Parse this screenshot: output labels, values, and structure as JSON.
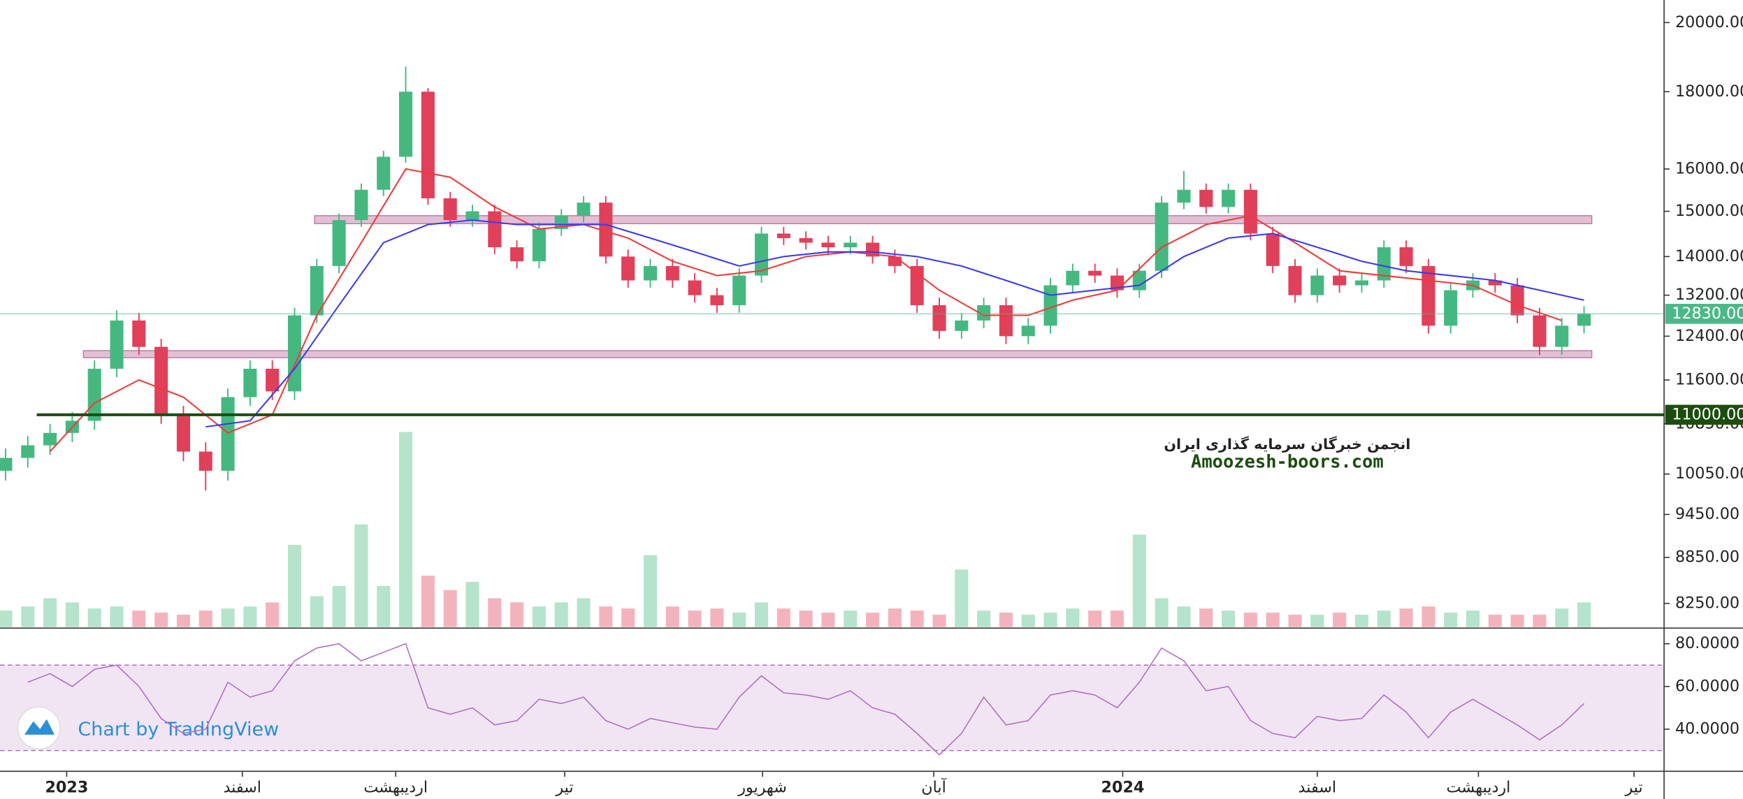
{
  "chart_data": {
    "type": "candlestick",
    "log": true,
    "up_color": "#45b880",
    "down_color": "#e0405a",
    "xlim": [
      -0.25,
      74.6
    ],
    "xticks": [
      {
        "value": 2.75,
        "label": "2023"
      },
      {
        "value": 10.65,
        "label": "اسفند"
      },
      {
        "value": 17.55,
        "label": "اردیبهشت"
      },
      {
        "value": 25.15,
        "label": "تیر"
      },
      {
        "value": 34.05,
        "label": "شهریور"
      },
      {
        "value": 41.75,
        "label": "آبان"
      },
      {
        "value": 50.25,
        "label": "2024"
      },
      {
        "value": 59,
        "label": "اسفند"
      },
      {
        "value": 66.25,
        "label": "اردیبهشت"
      },
      {
        "value": 73.25,
        "label": "تیر"
      }
    ],
    "ylim": [
      7960,
      20700
    ],
    "yticks": [
      {
        "value": 20000,
        "label": "20000.00"
      },
      {
        "value": 18000,
        "label": "18000.00"
      },
      {
        "value": 16000,
        "label": "16000.00"
      },
      {
        "value": 15000,
        "label": "15000.00"
      },
      {
        "value": 14000,
        "label": "14000.00"
      },
      {
        "value": 13200,
        "label": "13200.00"
      },
      {
        "value": 12400,
        "label": "12400.00"
      },
      {
        "value": 11600,
        "label": "11600.00"
      },
      {
        "value": 10850,
        "label": "10850.00"
      },
      {
        "value": 10050,
        "label": "10050.00"
      },
      {
        "value": 9450,
        "label": "9450.00"
      },
      {
        "value": 8850,
        "label": "8850.00"
      },
      {
        "value": 8250,
        "label": "8250.00"
      }
    ],
    "x": [
      0,
      1,
      2,
      3,
      4,
      5,
      6,
      7,
      8,
      9,
      10,
      11,
      12,
      13,
      14,
      15,
      16,
      17,
      18,
      19,
      20,
      21,
      22,
      23,
      24,
      25,
      26,
      27,
      28,
      29,
      30,
      31,
      32,
      33,
      34,
      35,
      36,
      37,
      38,
      39,
      40,
      41,
      42,
      43,
      44,
      45,
      46,
      47,
      48,
      49,
      50,
      51,
      52,
      53,
      54,
      55,
      56,
      57,
      58,
      59,
      60,
      61,
      62,
      63,
      64,
      65,
      66,
      67,
      68,
      69,
      70,
      71
    ],
    "open": [
      10100,
      10300,
      10500,
      10700,
      10900,
      11800,
      12700,
      12200,
      11000,
      10400,
      10100,
      11300,
      11800,
      11400,
      12800,
      13800,
      14800,
      15500,
      16300,
      18000,
      15300,
      14800,
      15000,
      14200,
      13900,
      14600,
      14900,
      15200,
      14000,
      13500,
      13800,
      13500,
      13200,
      13000,
      13600,
      14500,
      14400,
      14300,
      14200,
      14300,
      14000,
      13800,
      13000,
      12500,
      12700,
      13000,
      12400,
      12600,
      13400,
      13700,
      13600,
      13300,
      13700,
      15200,
      15500,
      15100,
      15500,
      14500,
      13800,
      13200,
      13600,
      13400,
      13500,
      14200,
      13800,
      12600,
      13300,
      13500,
      13400,
      12800,
      12200,
      12600
    ],
    "high": [
      10450,
      10650,
      10850,
      11050,
      11950,
      12900,
      12850,
      12350,
      11150,
      10550,
      11450,
      11950,
      11950,
      12950,
      13950,
      14950,
      15650,
      16450,
      18700,
      18100,
      15450,
      15150,
      15150,
      14350,
      14750,
      15050,
      15350,
      15350,
      14150,
      13950,
      13950,
      13650,
      13350,
      13750,
      14650,
      14650,
      14550,
      14450,
      14450,
      14450,
      14150,
      13950,
      13150,
      12850,
      13150,
      13150,
      12750,
      13550,
      13850,
      13850,
      13750,
      13850,
      15350,
      15950,
      15650,
      15650,
      15650,
      14650,
      13950,
      13750,
      13750,
      13650,
      14350,
      14350,
      13950,
      13450,
      13650,
      13650,
      13550,
      12950,
      12750,
      12980
    ],
    "low": [
      9950,
      10150,
      10350,
      10550,
      10750,
      11650,
      12050,
      10850,
      10250,
      9800,
      9950,
      11150,
      11250,
      11250,
      12650,
      13650,
      14650,
      15350,
      16150,
      15150,
      14650,
      14650,
      14050,
      13750,
      13750,
      14450,
      14750,
      13850,
      13350,
      13350,
      13350,
      13050,
      12850,
      12850,
      13450,
      14250,
      14150,
      14050,
      14050,
      13850,
      13650,
      12850,
      12350,
      12350,
      12550,
      12250,
      12250,
      12450,
      13250,
      13450,
      13150,
      13150,
      13550,
      15050,
      14950,
      14950,
      14350,
      13650,
      13050,
      13050,
      13250,
      13250,
      13350,
      13650,
      12450,
      12450,
      13150,
      13250,
      12650,
      12050,
      12050,
      12450
    ],
    "close": [
      10300,
      10500,
      10700,
      10900,
      11800,
      12700,
      12200,
      11000,
      10400,
      10100,
      11300,
      11800,
      11400,
      12800,
      13800,
      14800,
      15500,
      16300,
      18000,
      15300,
      14800,
      15000,
      14200,
      13900,
      14600,
      14900,
      15200,
      14000,
      13500,
      13800,
      13500,
      13200,
      13000,
      13600,
      14500,
      14400,
      14300,
      14200,
      14300,
      14000,
      13800,
      13000,
      12500,
      12700,
      13000,
      12400,
      12600,
      13400,
      13700,
      13600,
      13300,
      13700,
      15200,
      15500,
      15100,
      15500,
      14500,
      13800,
      13200,
      13600,
      13400,
      13500,
      14200,
      13800,
      12600,
      13300,
      13500,
      13400,
      12800,
      12200,
      12600,
      12830
    ],
    "volume": [
      8,
      10,
      14,
      12,
      9,
      10,
      8,
      7,
      6,
      8,
      9,
      10,
      12,
      40,
      15,
      20,
      50,
      20,
      95,
      25,
      18,
      22,
      14,
      12,
      10,
      12,
      14,
      10,
      9,
      35,
      10,
      8,
      9,
      7,
      12,
      9,
      8,
      7,
      8,
      7,
      9,
      8,
      6,
      28,
      8,
      7,
      6,
      7,
      9,
      8,
      8,
      45,
      14,
      10,
      9,
      8,
      7,
      7,
      6,
      6,
      7,
      6,
      8,
      9,
      10,
      7,
      8,
      6,
      6,
      6,
      9,
      12
    ],
    "volume_lim": [
      0,
      100
    ],
    "moving_averages": [
      {
        "color": "#f03a3a",
        "x": [
          2,
          4,
          6,
          8,
          10,
          12,
          14,
          16,
          18,
          20,
          22,
          24,
          26,
          28,
          30,
          32,
          34,
          36,
          38,
          40,
          42,
          44,
          46,
          48,
          50,
          52,
          54,
          56,
          58,
          60,
          62,
          64,
          66,
          68,
          70
        ],
        "values": [
          10400,
          11200,
          11600,
          11300,
          10700,
          11000,
          12800,
          14300,
          16000,
          15800,
          15100,
          14600,
          14700,
          14400,
          13900,
          13600,
          13700,
          14000,
          14100,
          14000,
          13300,
          12800,
          12800,
          13100,
          13300,
          14200,
          14700,
          14900,
          14300,
          13700,
          13600,
          13500,
          13400,
          13000,
          12700
        ]
      },
      {
        "color": "#3a3af0",
        "x": [
          9,
          11,
          13,
          15,
          17,
          19,
          21,
          23,
          25,
          27,
          29,
          31,
          33,
          35,
          37,
          39,
          41,
          43,
          45,
          47,
          49,
          51,
          53,
          55,
          57,
          59,
          61,
          63,
          65,
          67,
          69,
          71
        ],
        "values": [
          10800,
          10900,
          11800,
          13000,
          14300,
          14700,
          14800,
          14700,
          14700,
          14700,
          14400,
          14100,
          13800,
          14000,
          14100,
          14100,
          14000,
          13800,
          13500,
          13200,
          13300,
          13400,
          14000,
          14400,
          14500,
          14200,
          13900,
          13700,
          13600,
          13500,
          13300,
          13100
        ]
      }
    ],
    "zones": [
      {
        "from_x": 13.9,
        "to_x": 71.35,
        "low": 14720,
        "high": 14900,
        "color": "#d9a9c6"
      },
      {
        "from_x": 3.5,
        "to_x": 71.35,
        "low": 12000,
        "high": 12130,
        "color": "#d9a9c6"
      }
    ],
    "price_lines": [
      {
        "value": 12830,
        "label": "12830.00",
        "color": "#4cb88a",
        "start_x": -0.25
      },
      {
        "value": 11000,
        "label": "11000.00",
        "color": "#1b4d0e",
        "start_x": 1.4
      }
    ],
    "rsi": {
      "color": "#b070c0",
      "values": [
        null,
        62,
        66,
        60,
        68,
        70,
        60,
        45,
        38,
        40,
        62,
        55,
        58,
        72,
        78,
        80,
        72,
        76,
        80,
        50,
        47,
        50,
        42,
        44,
        54,
        52,
        55,
        44,
        40,
        45,
        43,
        41,
        40,
        55,
        65,
        57,
        56,
        54,
        58,
        50,
        47,
        38,
        28,
        38,
        55,
        42,
        44,
        56,
        58,
        56,
        50,
        62,
        78,
        72,
        58,
        60,
        44,
        38,
        36,
        46,
        44,
        45,
        56,
        48,
        36,
        48,
        54,
        48,
        42,
        35,
        42,
        52
      ],
      "ylim": [
        20.3,
        86.8
      ],
      "band": [
        30,
        70
      ],
      "yticks": [
        {
          "value": 80,
          "label": "80.0000"
        },
        {
          "value": 60,
          "label": "60.0000"
        },
        {
          "value": 40,
          "label": "40.0000"
        }
      ]
    },
    "watermark": [
      "انجمن خبرگان سرمایه گذاری ایران",
      "Amoozesh-boors.com"
    ],
    "credit": "Chart by TradingView"
  }
}
